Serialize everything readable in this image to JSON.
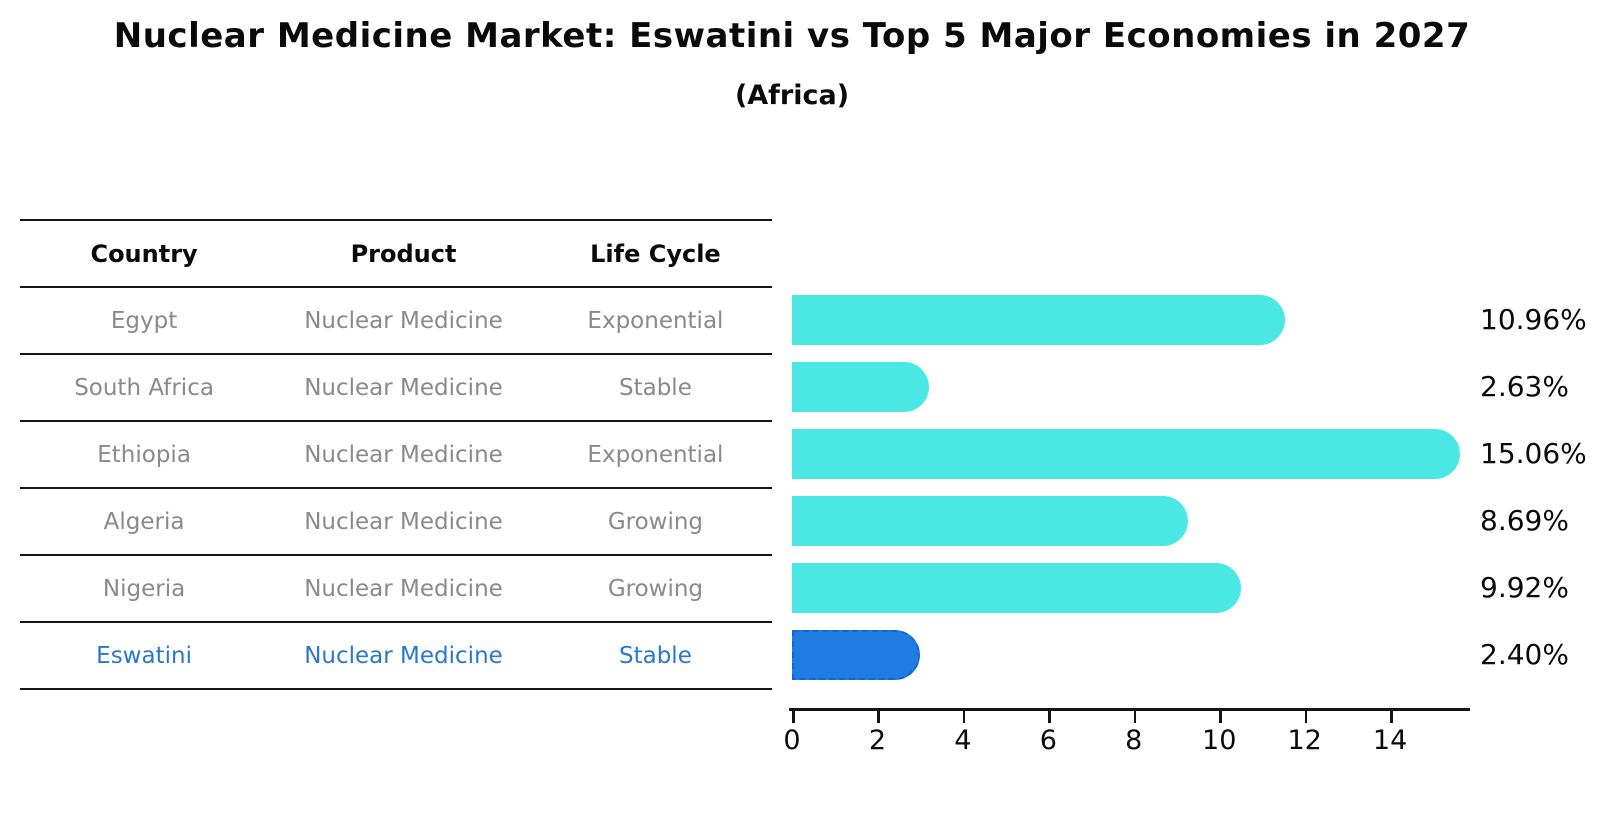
{
  "title": "Nuclear Medicine Market: Eswatini vs Top 5 Major Economies in 2027",
  "subtitle": "(Africa)",
  "table": {
    "headers": {
      "country": "Country",
      "product": "Product",
      "life_cycle": "Life Cycle"
    },
    "rows": [
      {
        "country": "Egypt",
        "product": "Nuclear Medicine",
        "life_cycle": "Exponential"
      },
      {
        "country": "South Africa",
        "product": "Nuclear Medicine",
        "life_cycle": "Stable"
      },
      {
        "country": "Ethiopia",
        "product": "Nuclear Medicine",
        "life_cycle": "Exponential"
      },
      {
        "country": "Algeria",
        "product": "Nuclear Medicine",
        "life_cycle": "Growing"
      },
      {
        "country": "Nigeria",
        "product": "Nuclear Medicine",
        "life_cycle": "Growing"
      },
      {
        "country": "Eswatini",
        "product": "Nuclear Medicine",
        "life_cycle": "Stable"
      }
    ]
  },
  "chart_data": {
    "type": "bar",
    "orientation": "horizontal",
    "title": "Nuclear Medicine Market: Eswatini vs Top 5 Major Economies in 2027 (Africa)",
    "categories": [
      "Egypt",
      "South Africa",
      "Ethiopia",
      "Algeria",
      "Nigeria",
      "Eswatini"
    ],
    "values": [
      10.96,
      2.63,
      15.06,
      8.69,
      9.92,
      2.4
    ],
    "value_labels": [
      "10.96%",
      "2.63%",
      "15.06%",
      "8.69%",
      "9.92%",
      "2.40%"
    ],
    "x_ticks": [
      0,
      2,
      4,
      6,
      8,
      10,
      12,
      14
    ],
    "xlim": [
      0,
      15.8
    ],
    "xlabel": "",
    "ylabel": "",
    "grid": false,
    "legend": "none",
    "highlight_category": "Eswatini",
    "colors": {
      "bar": "#4ae7e4",
      "highlight_bar": "#1e7ce2",
      "highlight_border": "#1766cc",
      "highlight_text": "#2878ce",
      "table_text": "#8a8a8a",
      "text": "#0a0a0a"
    }
  }
}
